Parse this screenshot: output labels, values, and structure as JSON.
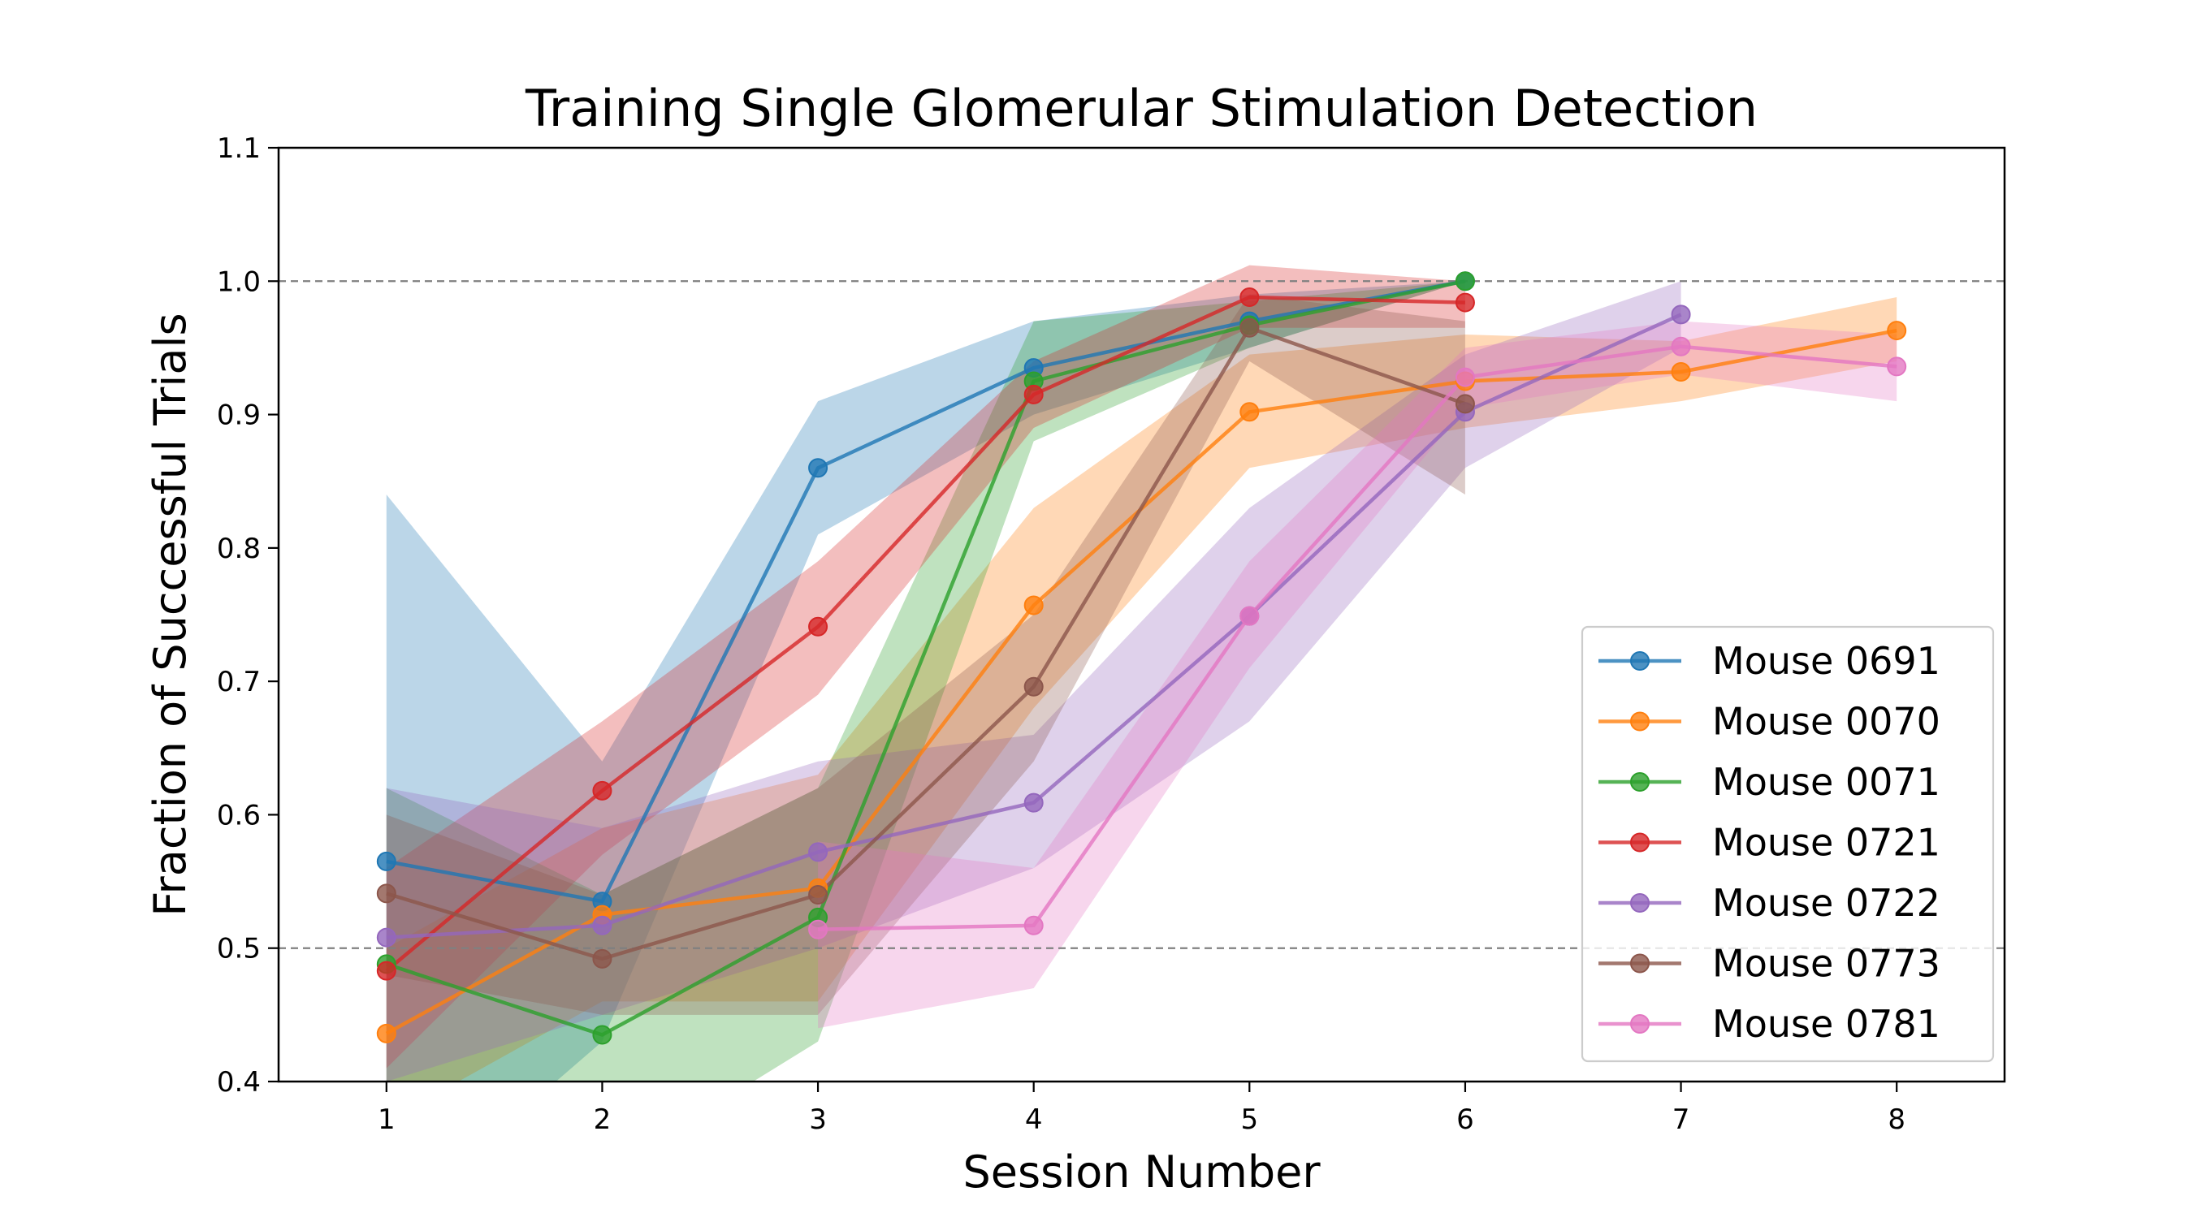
{
  "chart_data": {
    "type": "line",
    "title": "Training Single Glomerular Stimulation Detection",
    "xlabel": "Session Number",
    "ylabel": "Fraction of Successful Trials",
    "xlim": [
      0.5,
      8.5
    ],
    "ylim": [
      0.4,
      1.1
    ],
    "xticks": [
      "1",
      "2",
      "3",
      "4",
      "5",
      "6",
      "7",
      "8"
    ],
    "yticks": [
      "0.4",
      "0.5",
      "0.6",
      "0.7",
      "0.8",
      "0.9",
      "1.0",
      "1.1"
    ],
    "reference_lines": [
      0.5,
      1.0
    ],
    "grid": false,
    "legend_position": "lower-right",
    "series": [
      {
        "name": "Mouse 0691",
        "color": "#1f77b4",
        "x": [
          1,
          2,
          3,
          4,
          5,
          6
        ],
        "y": [
          0.565,
          0.535,
          0.86,
          0.935,
          0.97,
          1.0
        ],
        "lower": [
          0.29,
          0.43,
          0.81,
          0.9,
          0.95,
          1.0
        ],
        "upper": [
          0.84,
          0.64,
          0.91,
          0.97,
          0.99,
          1.0
        ]
      },
      {
        "name": "Mouse 0070",
        "color": "#ff7f0e",
        "x": [
          1,
          2,
          3,
          4,
          5,
          6,
          7,
          8
        ],
        "y": [
          0.436,
          0.525,
          0.545,
          0.757,
          0.902,
          0.925,
          0.932,
          0.963
        ],
        "lower": [
          0.37,
          0.46,
          0.46,
          0.68,
          0.86,
          0.89,
          0.91,
          0.94
        ],
        "upper": [
          0.5,
          0.59,
          0.63,
          0.83,
          0.945,
          0.96,
          0.955,
          0.988
        ]
      },
      {
        "name": "Mouse 0071",
        "color": "#2ca02c",
        "x": [
          1,
          2,
          3,
          4,
          5,
          6
        ],
        "y": [
          0.488,
          0.435,
          0.523,
          0.925,
          0.967,
          1.0
        ],
        "lower": [
          0.36,
          0.33,
          0.43,
          0.88,
          0.95,
          1.0
        ],
        "upper": [
          0.62,
          0.54,
          0.62,
          0.97,
          0.985,
          1.0
        ]
      },
      {
        "name": "Mouse 0721",
        "color": "#d62728",
        "x": [
          1,
          2,
          3,
          4,
          5,
          6
        ],
        "y": [
          0.483,
          0.618,
          0.741,
          0.915,
          0.988,
          0.984
        ],
        "lower": [
          0.41,
          0.57,
          0.69,
          0.89,
          0.965,
          0.965
        ],
        "upper": [
          0.56,
          0.67,
          0.79,
          0.94,
          1.012,
          1.0
        ]
      },
      {
        "name": "Mouse 0722",
        "color": "#9467bd",
        "x": [
          1,
          2,
          3,
          4,
          5,
          6,
          7
        ],
        "y": [
          0.508,
          0.517,
          0.572,
          0.609,
          0.749,
          0.902,
          0.975
        ],
        "lower": [
          0.4,
          0.45,
          0.5,
          0.56,
          0.67,
          0.86,
          0.95
        ],
        "upper": [
          0.62,
          0.59,
          0.64,
          0.66,
          0.83,
          0.945,
          1.0
        ]
      },
      {
        "name": "Mouse 0773",
        "color": "#8c564b",
        "x": [
          1,
          2,
          3,
          4,
          5,
          6
        ],
        "y": [
          0.541,
          0.492,
          0.54,
          0.696,
          0.965,
          0.908
        ],
        "lower": [
          0.48,
          0.45,
          0.45,
          0.64,
          0.94,
          0.84
        ],
        "upper": [
          0.6,
          0.54,
          0.62,
          0.75,
          0.99,
          0.97
        ]
      },
      {
        "name": "Mouse 0781",
        "color": "#e377c2",
        "x": [
          3,
          4,
          5,
          6,
          7,
          8
        ],
        "y": [
          0.514,
          0.517,
          0.749,
          0.928,
          0.951,
          0.936
        ],
        "lower": [
          0.44,
          0.47,
          0.71,
          0.905,
          0.93,
          0.91
        ],
        "upper": [
          0.58,
          0.56,
          0.79,
          0.95,
          0.97,
          0.96
        ]
      }
    ]
  }
}
